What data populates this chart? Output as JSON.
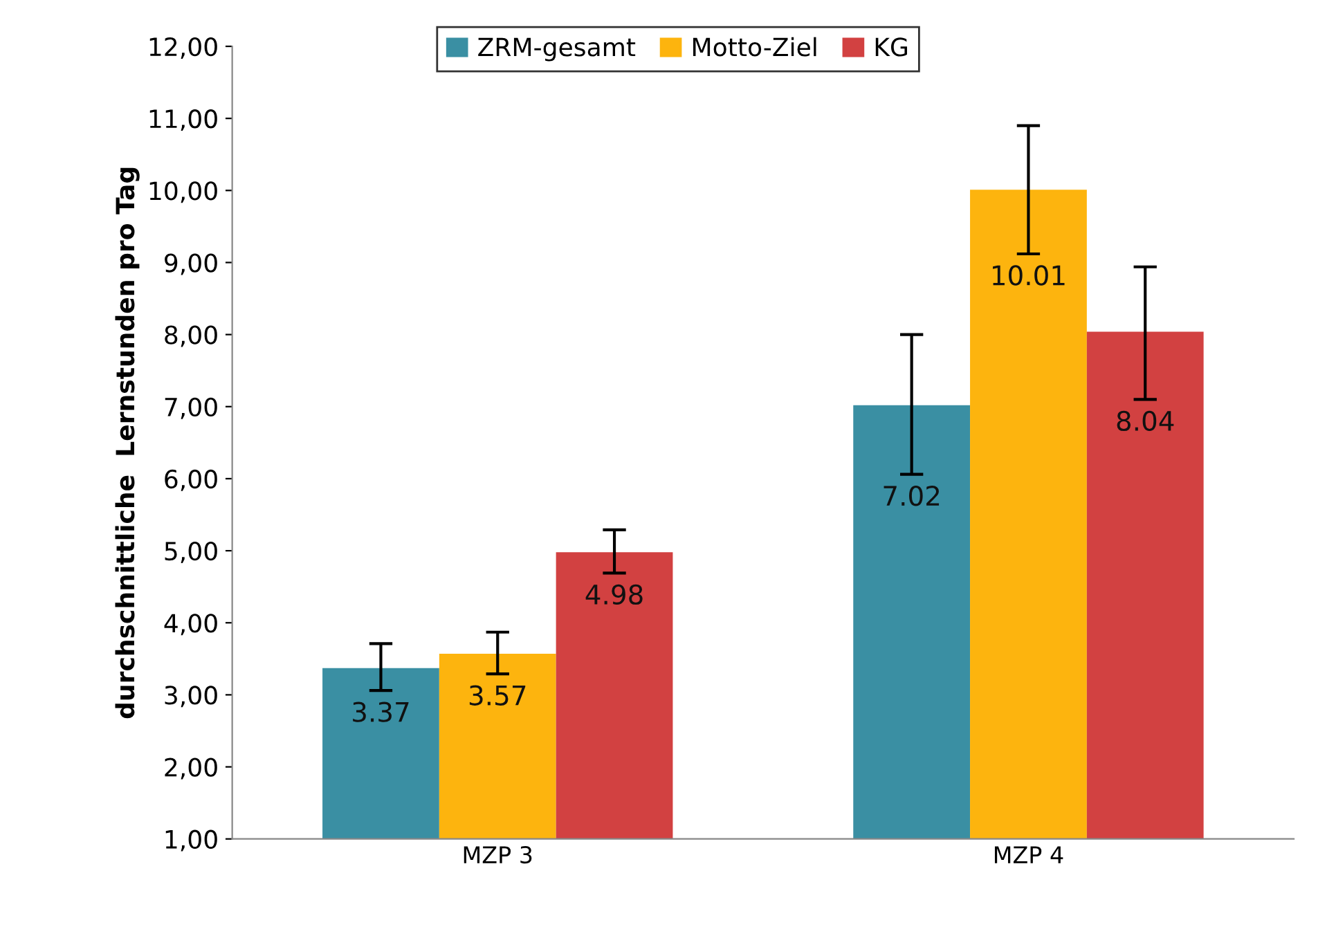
{
  "chart_data": {
    "type": "bar",
    "ylabel": "durchschnittliche  Lernstunden pro Tag",
    "categories": [
      "MZP 3",
      "MZP 4"
    ],
    "series": [
      {
        "name": "ZRM-gesamt",
        "color": "#3a8fa3",
        "values": [
          3.37,
          7.02
        ],
        "errors": [
          [
            3.06,
            3.71
          ],
          [
            6.06,
            8.0
          ]
        ]
      },
      {
        "name": "Motto-Ziel",
        "color": "#fdb40e",
        "values": [
          3.57,
          10.01
        ],
        "errors": [
          [
            3.29,
            3.87
          ],
          [
            9.12,
            10.9
          ]
        ]
      },
      {
        "name": "KG",
        "color": "#d24141",
        "values": [
          4.98,
          8.04
        ],
        "errors": [
          [
            4.69,
            5.29
          ],
          [
            7.1,
            8.94
          ]
        ]
      }
    ],
    "ylim": [
      1,
      12
    ],
    "yticks": [
      {
        "value": 1,
        "label": "1,00"
      },
      {
        "value": 2,
        "label": "2,00"
      },
      {
        "value": 3,
        "label": "3,00"
      },
      {
        "value": 4,
        "label": "4,00"
      },
      {
        "value": 5,
        "label": "5,00"
      },
      {
        "value": 6,
        "label": "6,00"
      },
      {
        "value": 7,
        "label": "7,00"
      },
      {
        "value": 8,
        "label": "8,00"
      },
      {
        "value": 9,
        "label": "9,00"
      },
      {
        "value": 10,
        "label": "10,00"
      },
      {
        "value": 11,
        "label": "11,00"
      },
      {
        "value": 12,
        "label": "12,00"
      }
    ],
    "data_labels": true,
    "legend": "top",
    "grid": false
  }
}
